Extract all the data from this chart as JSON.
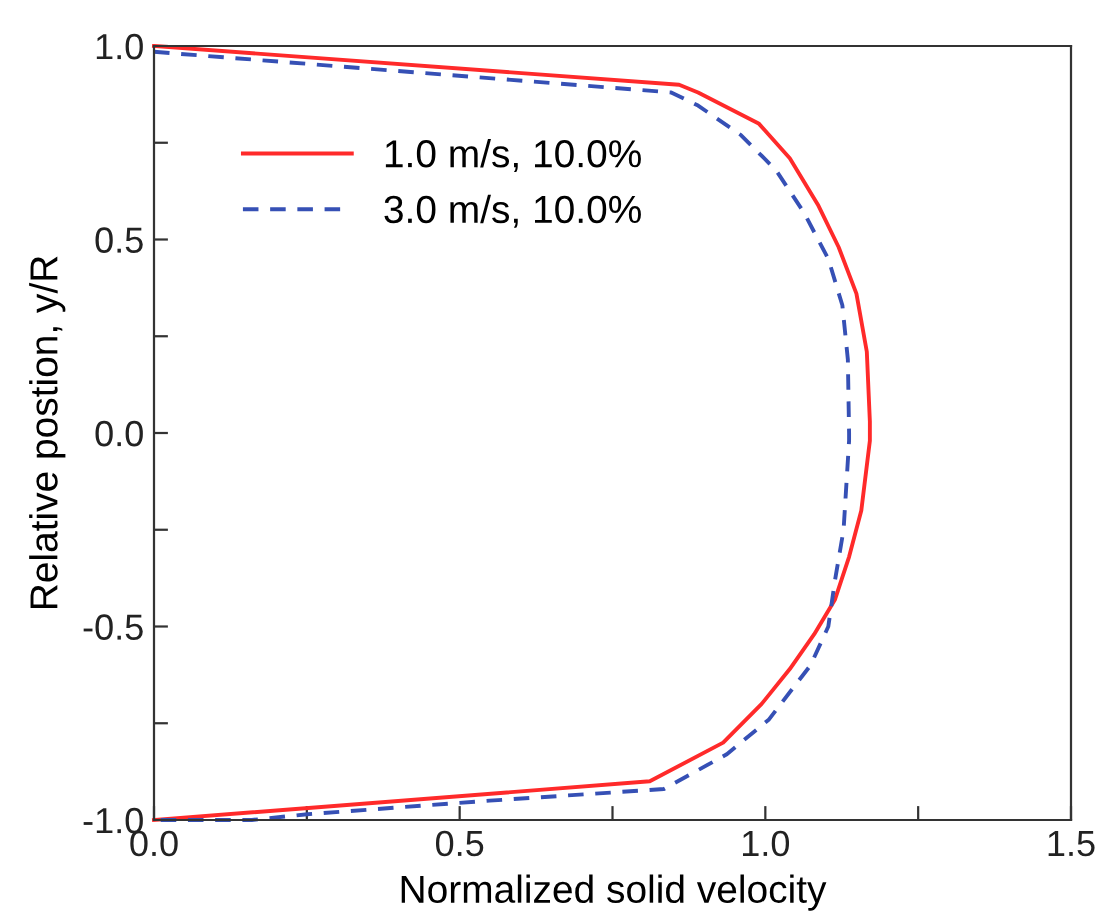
{
  "chart_data": {
    "type": "line",
    "xlabel": "Normalized solid velocity",
    "ylabel": "Relative postion, y/R",
    "xlim": [
      0,
      1.5
    ],
    "xticks": [
      {
        "value": 0,
        "label": "0.0"
      },
      {
        "value": 0.25,
        "label": null
      },
      {
        "value": 0.5,
        "label": "0.5"
      },
      {
        "value": 0.75,
        "label": null
      },
      {
        "value": 1.0,
        "label": "1.0"
      },
      {
        "value": 1.25,
        "label": null
      },
      {
        "value": 1.5,
        "label": "1.5"
      }
    ],
    "ylim": [
      -1,
      1
    ],
    "yticks": [
      {
        "value": -1.0,
        "label": "-1.0"
      },
      {
        "value": -0.75,
        "label": null
      },
      {
        "value": -0.5,
        "label": "-0.5"
      },
      {
        "value": -0.25,
        "label": null
      },
      {
        "value": 0.0,
        "label": "0.0"
      },
      {
        "value": 0.25,
        "label": null
      },
      {
        "value": 0.5,
        "label": "0.5"
      },
      {
        "value": 0.75,
        "label": null
      },
      {
        "value": 1.0,
        "label": "1.0"
      }
    ],
    "legend": "top left",
    "grid": false,
    "marker": "none",
    "series": [
      {
        "name": "1.0 m/s, 10.0%",
        "color": "#ff2a2a",
        "line_style": "solid",
        "x": [
          0,
          0.859,
          0.89,
          0.989,
          1.04,
          1.086,
          1.12,
          1.149,
          1.166,
          1.171,
          1.171,
          1.157,
          1.137,
          1.114,
          1.08,
          1.04,
          0.994,
          0.931,
          0.811,
          0
        ],
        "values": [
          1,
          0.9,
          0.88,
          0.8,
          0.71,
          0.59,
          0.48,
          0.36,
          0.21,
          0.03,
          -0.02,
          -0.2,
          -0.32,
          -0.43,
          -0.52,
          -0.61,
          -0.7,
          -0.8,
          -0.9,
          -1
        ]
      },
      {
        "name": "3.0 m/s, 10.0%",
        "color": "#3650b5",
        "line_style": "dashed",
        "x": [
          0,
          0.846,
          0.89,
          0.96,
          1.017,
          1.063,
          1.103,
          1.126,
          1.135,
          1.137,
          1.137,
          1.128,
          1.114,
          1.103,
          1.074,
          1.006,
          0.937,
          0.834,
          0.549,
          0.251,
          0.16,
          0
        ],
        "values": [
          0.985,
          0.88,
          0.846,
          0.77,
          0.68,
          0.57,
          0.45,
          0.33,
          0.19,
          0.0,
          -0.02,
          -0.25,
          -0.38,
          -0.5,
          -0.6,
          -0.74,
          -0.83,
          -0.92,
          -0.95,
          -0.985,
          -1.0,
          -1.0
        ]
      }
    ]
  }
}
